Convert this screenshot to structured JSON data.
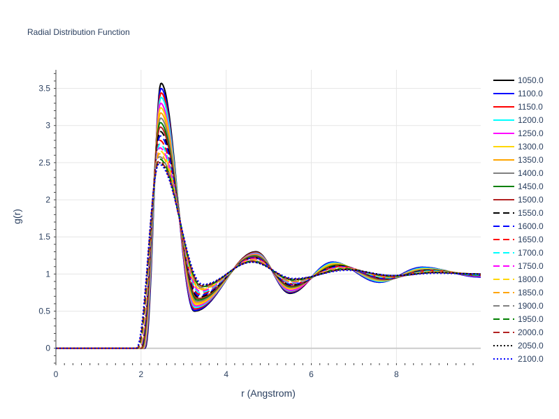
{
  "chart_data": {
    "type": "line",
    "title": "Radial Distribution Function",
    "xlabel": "r (Angstrom)",
    "ylabel": "g(r)",
    "xlim": [
      0,
      9.98
    ],
    "ylim": [
      -0.2,
      3.75
    ],
    "xticks": [
      0,
      2,
      4,
      6,
      8
    ],
    "xtick_labels": [
      "0",
      "2",
      "4",
      "6",
      "8"
    ],
    "yticks": [
      0,
      0.5,
      1,
      1.5,
      2,
      2.5,
      3,
      3.5
    ],
    "ytick_labels": [
      "0",
      "0.5",
      "1",
      "1.5",
      "2",
      "2.5",
      "3",
      "3.5"
    ],
    "grid": true,
    "legend_position": "right",
    "series": [
      {
        "name": "1050.0",
        "color": "#000000",
        "dash": "solid",
        "r0": 2.09,
        "peak_r": 2.47,
        "peak": 3.57,
        "min1_r": 3.25,
        "min1": 0.5,
        "max2_r": 4.7,
        "max2": 1.3,
        "min2_r": 5.5,
        "min2": 0.74,
        "max3_r": 6.5,
        "max3": 1.16,
        "min3_r": 7.6,
        "min3": 0.89,
        "max4_r": 8.6,
        "max4": 1.09,
        "end": 0.96
      },
      {
        "name": "1100.0",
        "color": "#0000ff",
        "dash": "solid",
        "r0": 2.08,
        "peak_r": 2.47,
        "peak": 3.5,
        "min1_r": 3.25,
        "min1": 0.51,
        "max2_r": 4.7,
        "max2": 1.29,
        "min2_r": 5.5,
        "min2": 0.75,
        "max3_r": 6.5,
        "max3": 1.16,
        "min3_r": 7.6,
        "min3": 0.89,
        "max4_r": 8.6,
        "max4": 1.09,
        "end": 0.96
      },
      {
        "name": "1150.0",
        "color": "#ff0000",
        "dash": "solid",
        "r0": 2.07,
        "peak_r": 2.47,
        "peak": 3.44,
        "min1_r": 3.26,
        "min1": 0.53,
        "max2_r": 4.7,
        "max2": 1.29,
        "min2_r": 5.5,
        "min2": 0.76,
        "max3_r": 6.52,
        "max3": 1.15,
        "min3_r": 7.62,
        "min3": 0.9,
        "max4_r": 8.62,
        "max4": 1.08,
        "end": 0.97
      },
      {
        "name": "1200.0",
        "color": "#00ffff",
        "dash": "solid",
        "r0": 2.06,
        "peak_r": 2.47,
        "peak": 3.38,
        "min1_r": 3.27,
        "min1": 0.55,
        "max2_r": 4.7,
        "max2": 1.28,
        "min2_r": 5.5,
        "min2": 0.77,
        "max3_r": 6.53,
        "max3": 1.15,
        "min3_r": 7.63,
        "min3": 0.9,
        "max4_r": 8.63,
        "max4": 1.08,
        "end": 0.97
      },
      {
        "name": "1250.0",
        "color": "#ff00ff",
        "dash": "solid",
        "r0": 2.05,
        "peak_r": 2.46,
        "peak": 3.3,
        "min1_r": 3.28,
        "min1": 0.57,
        "max2_r": 4.69,
        "max2": 1.27,
        "min2_r": 5.51,
        "min2": 0.78,
        "max3_r": 6.55,
        "max3": 1.14,
        "min3_r": 7.65,
        "min3": 0.91,
        "max4_r": 8.65,
        "max4": 1.07,
        "end": 0.97
      },
      {
        "name": "1300.0",
        "color": "#ffd700",
        "dash": "solid",
        "r0": 2.04,
        "peak_r": 2.46,
        "peak": 3.24,
        "min1_r": 3.29,
        "min1": 0.59,
        "max2_r": 4.69,
        "max2": 1.26,
        "min2_r": 5.51,
        "min2": 0.8,
        "max3_r": 6.56,
        "max3": 1.14,
        "min3_r": 7.66,
        "min3": 0.91,
        "max4_r": 8.66,
        "max4": 1.07,
        "end": 0.98
      },
      {
        "name": "1350.0",
        "color": "#ffa500",
        "dash": "solid",
        "r0": 2.03,
        "peak_r": 2.46,
        "peak": 3.17,
        "min1_r": 3.3,
        "min1": 0.61,
        "max2_r": 4.68,
        "max2": 1.26,
        "min2_r": 5.52,
        "min2": 0.81,
        "max3_r": 6.58,
        "max3": 1.13,
        "min3_r": 7.68,
        "min3": 0.92,
        "max4_r": 8.68,
        "max4": 1.06,
        "end": 0.98
      },
      {
        "name": "1400.0",
        "color": "#808080",
        "dash": "solid",
        "r0": 2.02,
        "peak_r": 2.46,
        "peak": 3.1,
        "min1_r": 3.31,
        "min1": 0.63,
        "max2_r": 4.68,
        "max2": 1.25,
        "min2_r": 5.52,
        "min2": 0.82,
        "max3_r": 6.6,
        "max3": 1.12,
        "min3_r": 7.7,
        "min3": 0.92,
        "max4_r": 8.7,
        "max4": 1.06,
        "end": 0.98
      },
      {
        "name": "1450.0",
        "color": "#008000",
        "dash": "solid",
        "r0": 2.01,
        "peak_r": 2.45,
        "peak": 3.04,
        "min1_r": 3.32,
        "min1": 0.65,
        "max2_r": 4.67,
        "max2": 1.24,
        "min2_r": 5.53,
        "min2": 0.83,
        "max3_r": 6.62,
        "max3": 1.12,
        "min3_r": 7.72,
        "min3": 0.93,
        "max4_r": 8.72,
        "max4": 1.05,
        "end": 0.98
      },
      {
        "name": "1500.0",
        "color": "#b22222",
        "dash": "solid",
        "r0": 2.0,
        "peak_r": 2.45,
        "peak": 2.98,
        "min1_r": 3.33,
        "min1": 0.67,
        "max2_r": 4.67,
        "max2": 1.23,
        "min2_r": 5.53,
        "min2": 0.84,
        "max3_r": 6.63,
        "max3": 1.11,
        "min3_r": 7.73,
        "min3": 0.93,
        "max4_r": 8.73,
        "max4": 1.05,
        "end": 0.99
      },
      {
        "name": "1550.0",
        "color": "#000000",
        "dash": "dash",
        "r0": 1.99,
        "peak_r": 2.45,
        "peak": 2.92,
        "min1_r": 3.34,
        "min1": 0.69,
        "max2_r": 4.66,
        "max2": 1.22,
        "min2_r": 5.54,
        "min2": 0.85,
        "max3_r": 6.65,
        "max3": 1.11,
        "min3_r": 7.75,
        "min3": 0.94,
        "max4_r": 8.75,
        "max4": 1.05,
        "end": 0.99
      },
      {
        "name": "1600.0",
        "color": "#0000ff",
        "dash": "dash",
        "r0": 1.98,
        "peak_r": 2.45,
        "peak": 2.86,
        "min1_r": 3.35,
        "min1": 0.71,
        "max2_r": 4.66,
        "max2": 1.22,
        "min2_r": 5.54,
        "min2": 0.86,
        "max3_r": 6.66,
        "max3": 1.1,
        "min3_r": 7.76,
        "min3": 0.94,
        "max4_r": 8.76,
        "max4": 1.04,
        "end": 0.99
      },
      {
        "name": "1650.0",
        "color": "#ff0000",
        "dash": "dash",
        "r0": 1.97,
        "peak_r": 2.44,
        "peak": 2.8,
        "min1_r": 3.36,
        "min1": 0.73,
        "max2_r": 4.65,
        "max2": 1.21,
        "min2_r": 5.55,
        "min2": 0.87,
        "max3_r": 6.68,
        "max3": 1.1,
        "min3_r": 7.78,
        "min3": 0.95,
        "max4_r": 8.78,
        "max4": 1.04,
        "end": 0.99
      },
      {
        "name": "1700.0",
        "color": "#00ffff",
        "dash": "dash",
        "r0": 1.96,
        "peak_r": 2.44,
        "peak": 2.75,
        "min1_r": 3.37,
        "min1": 0.75,
        "max2_r": 4.65,
        "max2": 1.2,
        "min2_r": 5.55,
        "min2": 0.88,
        "max3_r": 6.7,
        "max3": 1.09,
        "min3_r": 7.8,
        "min3": 0.95,
        "max4_r": 8.8,
        "max4": 1.04,
        "end": 0.99
      },
      {
        "name": "1750.0",
        "color": "#ff00ff",
        "dash": "dash",
        "r0": 1.95,
        "peak_r": 2.44,
        "peak": 2.7,
        "min1_r": 3.38,
        "min1": 0.77,
        "max2_r": 4.64,
        "max2": 1.2,
        "min2_r": 5.56,
        "min2": 0.89,
        "max3_r": 6.72,
        "max3": 1.09,
        "min3_r": 7.82,
        "min3": 0.96,
        "max4_r": 8.82,
        "max4": 1.03,
        "end": 1.0
      },
      {
        "name": "1800.0",
        "color": "#ffd700",
        "dash": "dash",
        "r0": 1.94,
        "peak_r": 2.44,
        "peak": 2.66,
        "min1_r": 3.39,
        "min1": 0.79,
        "max2_r": 4.64,
        "max2": 1.19,
        "min2_r": 5.56,
        "min2": 0.9,
        "max3_r": 6.73,
        "max3": 1.08,
        "min3_r": 7.83,
        "min3": 0.96,
        "max4_r": 8.83,
        "max4": 1.03,
        "end": 1.0
      },
      {
        "name": "1850.0",
        "color": "#ffa500",
        "dash": "dash",
        "r0": 1.93,
        "peak_r": 2.43,
        "peak": 2.62,
        "min1_r": 3.4,
        "min1": 0.8,
        "max2_r": 4.63,
        "max2": 1.18,
        "min2_r": 5.57,
        "min2": 0.9,
        "max3_r": 6.75,
        "max3": 1.08,
        "min3_r": 7.85,
        "min3": 0.96,
        "max4_r": 8.85,
        "max4": 1.03,
        "end": 1.0
      },
      {
        "name": "1900.0",
        "color": "#808080",
        "dash": "dash",
        "r0": 1.92,
        "peak_r": 2.43,
        "peak": 2.58,
        "min1_r": 3.41,
        "min1": 0.82,
        "max2_r": 4.63,
        "max2": 1.18,
        "min2_r": 5.57,
        "min2": 0.91,
        "max3_r": 6.77,
        "max3": 1.07,
        "min3_r": 7.87,
        "min3": 0.97,
        "max4_r": 8.87,
        "max4": 1.02,
        "end": 1.0
      },
      {
        "name": "1950.0",
        "color": "#008000",
        "dash": "dash",
        "r0": 1.91,
        "peak_r": 2.43,
        "peak": 2.55,
        "min1_r": 3.42,
        "min1": 0.83,
        "max2_r": 4.62,
        "max2": 1.17,
        "min2_r": 5.58,
        "min2": 0.92,
        "max3_r": 6.78,
        "max3": 1.07,
        "min3_r": 7.88,
        "min3": 0.97,
        "max4_r": 8.88,
        "max4": 1.02,
        "end": 1.0
      },
      {
        "name": "2000.0",
        "color": "#b22222",
        "dash": "dash",
        "r0": 1.9,
        "peak_r": 2.42,
        "peak": 2.52,
        "min1_r": 3.43,
        "min1": 0.84,
        "max2_r": 4.62,
        "max2": 1.17,
        "min2_r": 5.58,
        "min2": 0.93,
        "max3_r": 6.8,
        "max3": 1.06,
        "min3_r": 7.9,
        "min3": 0.97,
        "max4_r": 8.9,
        "max4": 1.02,
        "end": 1.0
      },
      {
        "name": "2050.0",
        "color": "#000000",
        "dash": "dot",
        "r0": 1.89,
        "peak_r": 2.42,
        "peak": 2.5,
        "min1_r": 3.44,
        "min1": 0.85,
        "max2_r": 4.61,
        "max2": 1.16,
        "min2_r": 5.59,
        "min2": 0.93,
        "max3_r": 6.82,
        "max3": 1.06,
        "min3_r": 7.92,
        "min3": 0.98,
        "max4_r": 8.92,
        "max4": 1.02,
        "end": 1.0
      },
      {
        "name": "2100.0",
        "color": "#0000ff",
        "dash": "dot",
        "r0": 1.88,
        "peak_r": 2.42,
        "peak": 2.48,
        "min1_r": 3.45,
        "min1": 0.86,
        "max2_r": 4.61,
        "max2": 1.16,
        "min2_r": 5.6,
        "min2": 0.94,
        "max3_r": 6.83,
        "max3": 1.05,
        "min3_r": 7.93,
        "min3": 0.98,
        "max4_r": 8.93,
        "max4": 1.01,
        "end": 1.0
      }
    ]
  }
}
